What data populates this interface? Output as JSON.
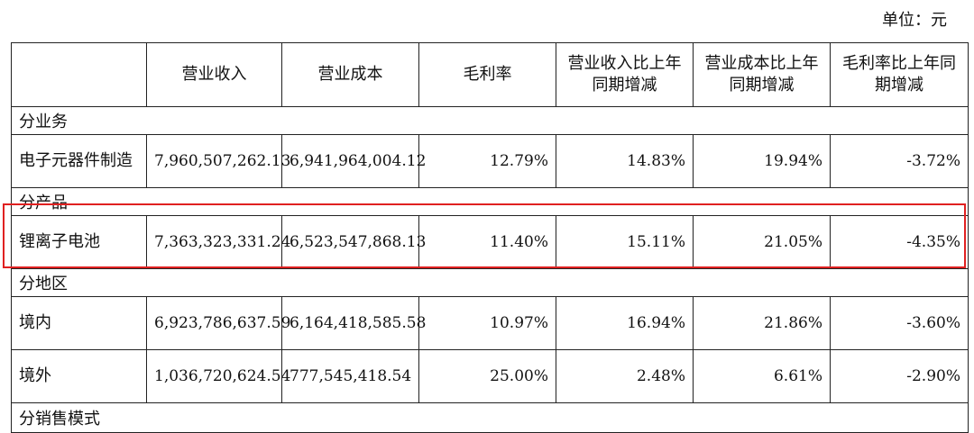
{
  "unit": "单位：元",
  "headers": [
    "",
    "营业收入",
    "营业成本",
    "毛利率",
    "营业收入比上年同期增减",
    "营业成本比上年同期增减",
    "毛利率比上年同期增减"
  ],
  "sections": {
    "business": "分业务",
    "product": "分产品",
    "region": "分地区",
    "sales_mode": "分销售模式"
  },
  "rows": {
    "electronics": {
      "name": "电子元器件制造",
      "revenue": "7,960,507,262.13",
      "cost": "6,941,964,004.12",
      "margin": "12.79%",
      "rev_yoy": "14.83%",
      "cost_yoy": "19.94%",
      "margin_yoy": "-3.72%"
    },
    "li_battery": {
      "name": "锂离子电池",
      "revenue": "7,363,323,331.24",
      "cost": "6,523,547,868.13",
      "margin": "11.40%",
      "rev_yoy": "15.11%",
      "cost_yoy": "21.05%",
      "margin_yoy": "-4.35%"
    },
    "domestic": {
      "name": "境内",
      "revenue": "6,923,786,637.59",
      "cost": "6,164,418,585.58",
      "margin": "10.97%",
      "rev_yoy": "16.94%",
      "cost_yoy": "21.86%",
      "margin_yoy": "-3.60%"
    },
    "overseas": {
      "name": "境外",
      "revenue": "1,036,720,624.54",
      "cost": "777,545,418.54",
      "margin": "25.00%",
      "rev_yoy": "2.48%",
      "cost_yoy": "6.61%",
      "margin_yoy": "-2.90%"
    }
  }
}
